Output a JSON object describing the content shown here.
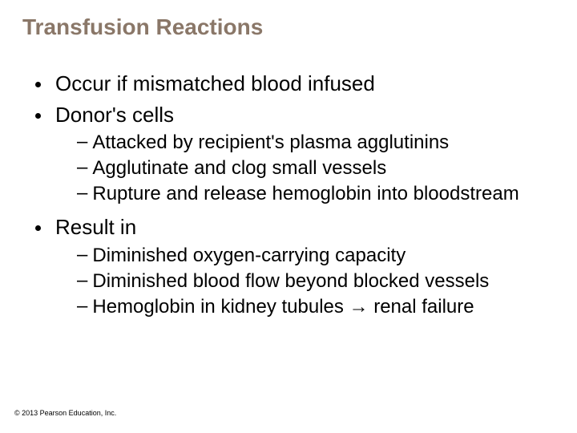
{
  "title": {
    "text": "Transfusion Reactions",
    "color": "#8a7768",
    "fontsize": 28
  },
  "body": {
    "color": "#000000",
    "lvl1_fontsize": 26,
    "lvl2_fontsize": 24
  },
  "bullets": [
    {
      "text": "Occur if mismatched blood infused"
    },
    {
      "text": "Donor's cells",
      "sub": [
        "Attacked by recipient's plasma agglutinins",
        "Agglutinate and clog small vessels",
        "Rupture and release hemoglobin into bloodstream"
      ]
    },
    {
      "text": "Result in",
      "sub": [
        "Diminished oxygen-carrying capacity",
        "Diminished blood flow beyond blocked vessels",
        "Hemoglobin in kidney tubules → renal failure"
      ]
    }
  ],
  "copyright": {
    "text": "© 2013 Pearson Education, Inc.",
    "fontsize": 9,
    "color": "#000000"
  }
}
